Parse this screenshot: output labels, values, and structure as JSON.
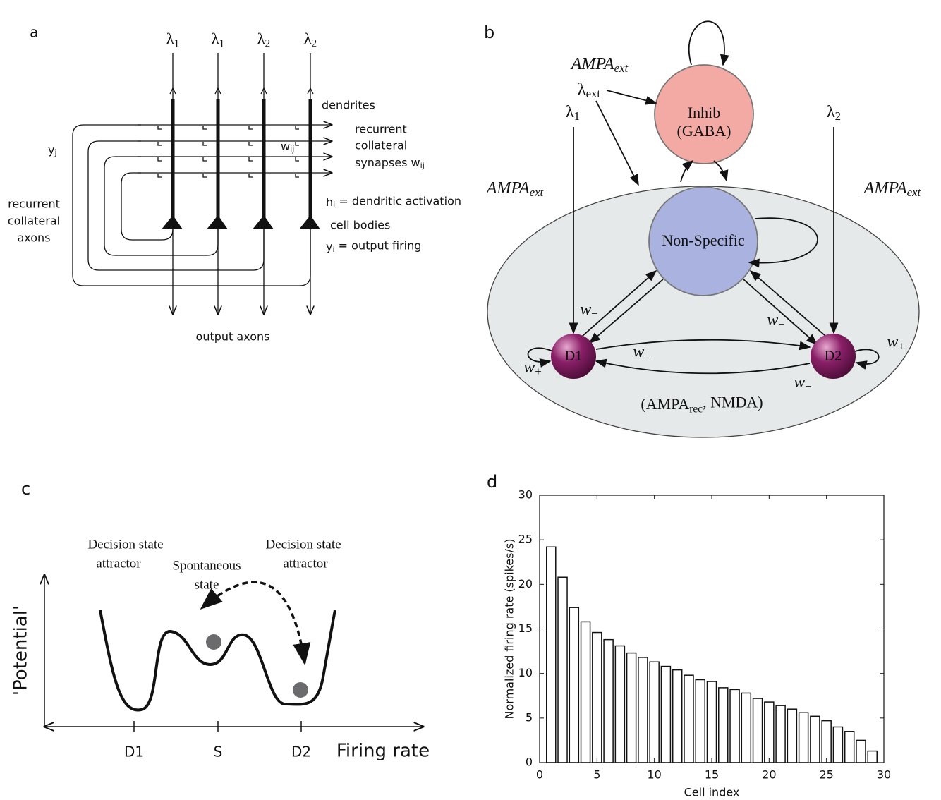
{
  "panel_a": {
    "label": "a",
    "inputs": [
      {
        "text": "λ",
        "sub": "1"
      },
      {
        "text": "λ",
        "sub": "1"
      },
      {
        "text": "λ",
        "sub": "2"
      },
      {
        "text": "λ",
        "sub": "2"
      }
    ],
    "dendrites": "dendrites",
    "synapse_label": [
      "recurrent",
      "collateral",
      {
        "text": "synapses w",
        "sub": "ij"
      }
    ],
    "y_j": {
      "text": "y",
      "sub": "j"
    },
    "w_ij": {
      "text": "w",
      "sub": "ij"
    },
    "axon_label": [
      "recurrent",
      "collateral",
      "axons"
    ],
    "h_i": {
      "text": "h",
      "sub": "i",
      "tail": " = dendritic activation"
    },
    "cell_bodies": "cell bodies",
    "y_i": {
      "text": "y",
      "sub": "i",
      "tail": " = output firing"
    },
    "output_axons": "output axons"
  },
  "panel_b": {
    "label": "b",
    "ampa_ext": [
      {
        "text": "AMPA",
        "sub": "ext"
      },
      {
        "text": "AMPA",
        "sub": "ext"
      },
      {
        "text": "AMPA",
        "sub": "ext"
      }
    ],
    "lambda_ext": {
      "text": "λ",
      "sub": "ext"
    },
    "lambda_1": {
      "text": "λ",
      "sub": "1"
    },
    "lambda_2": {
      "text": "λ",
      "sub": "2"
    },
    "inhib": [
      "Inhib",
      "(GABA)"
    ],
    "non_specific": "Non-Specific",
    "d1": "D1",
    "d2": "D2",
    "w_minus": [
      {
        "text": "w",
        "sub": "−"
      },
      {
        "text": "w",
        "sub": "−"
      },
      {
        "text": "w",
        "sub": "−"
      },
      {
        "text": "w",
        "sub": "−"
      }
    ],
    "w_plus": [
      {
        "text": "w",
        "sub": "+"
      },
      {
        "text": "w",
        "sub": "+"
      }
    ],
    "recurrent": {
      "text": "(AMPA",
      "sub": "rec",
      "tail": ", NMDA)"
    }
  },
  "panel_c": {
    "label": "c",
    "left_attractor": [
      "Decision state",
      "attractor"
    ],
    "spontaneous": [
      "Spontaneous",
      "state"
    ],
    "right_attractor": [
      "Decision state",
      "attractor"
    ],
    "y_label": "'Potential'",
    "x_ticks": [
      "D1",
      "S",
      "D2"
    ],
    "x_label": "Firing rate"
  },
  "chart_data": {
    "type": "bar",
    "panel_label": "d",
    "x_label": "Cell index",
    "y_label": "Normalized firing rate (spikes/s)",
    "x": [
      1,
      2,
      3,
      4,
      5,
      6,
      7,
      8,
      9,
      10,
      11,
      12,
      13,
      14,
      15,
      16,
      17,
      18,
      19,
      20,
      21,
      22,
      23,
      24,
      25,
      26,
      27,
      28,
      29
    ],
    "values": [
      24.2,
      20.8,
      17.4,
      15.8,
      14.6,
      13.8,
      13.1,
      12.3,
      11.8,
      11.3,
      10.8,
      10.4,
      9.8,
      9.3,
      9.1,
      8.4,
      8.2,
      7.8,
      7.2,
      6.8,
      6.4,
      6.0,
      5.6,
      5.2,
      4.7,
      4.0,
      3.5,
      2.5,
      1.3
    ],
    "color": "#ffffff",
    "xlim": [
      0,
      30
    ],
    "ylim": [
      0,
      30
    ],
    "xticks": [
      0,
      5,
      10,
      15,
      20,
      25,
      30
    ],
    "yticks": [
      0,
      5,
      10,
      15,
      20,
      25,
      30
    ]
  }
}
